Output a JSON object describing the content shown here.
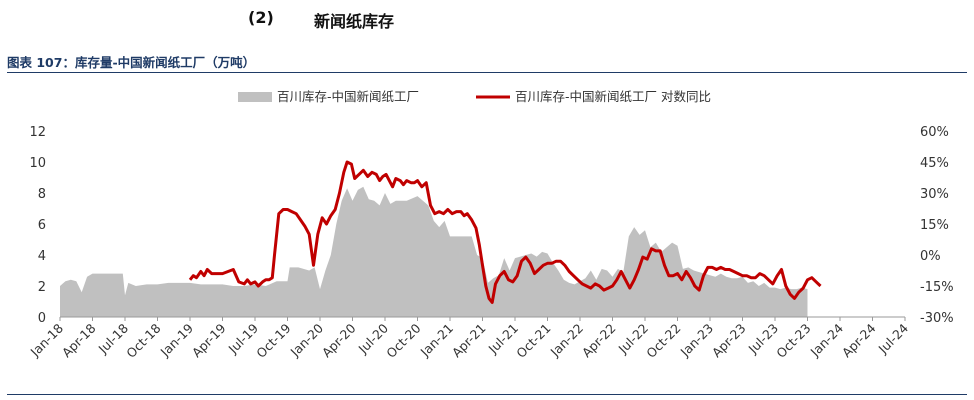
{
  "section": {
    "number": "(2)",
    "title": "新闻纸库存"
  },
  "caption": "图表 107：库存量-中国新闻纸工厂（万吨）",
  "chart_data": {
    "type": "area",
    "legend_position": "top-center",
    "grid": false,
    "x_tick_labels": [
      "Jan-18",
      "Apr-18",
      "Jul-18",
      "Oct-18",
      "Jan-19",
      "Apr-19",
      "Jul-19",
      "Oct-19",
      "Jan-20",
      "Apr-20",
      "Jul-20",
      "Oct-20",
      "Jan-21",
      "Apr-21",
      "Jul-21",
      "Oct-21",
      "Jan-22",
      "Apr-22",
      "Jul-22",
      "Oct-22",
      "Jan-23",
      "Apr-23",
      "Jul-23",
      "Oct-23",
      "Jan-24",
      "Apr-24",
      "Jul-24"
    ],
    "x_range": [
      0,
      78
    ],
    "y_left": {
      "range": [
        0,
        12
      ],
      "ticks": [
        "0",
        "2",
        "4",
        "6",
        "8",
        "10",
        "12"
      ]
    },
    "y_right": {
      "range": [
        -30,
        60
      ],
      "ticks": [
        "-30%",
        "-15%",
        "0%",
        "15%",
        "30%",
        "45%",
        "60%"
      ]
    },
    "colors": {
      "inventory": "#c0c0c0",
      "yoy": "#c00000"
    },
    "series": [
      {
        "name": "百川库存-中国新闻纸工厂",
        "kind": "area",
        "axis": "left",
        "points": [
          [
            0,
            2.0
          ],
          [
            0.5,
            2.3
          ],
          [
            1,
            2.4
          ],
          [
            1.5,
            2.3
          ],
          [
            2,
            1.6
          ],
          [
            2.5,
            2.6
          ],
          [
            3,
            2.8
          ],
          [
            4,
            2.8
          ],
          [
            5,
            2.8
          ],
          [
            5.8,
            2.8
          ],
          [
            6,
            1.4
          ],
          [
            6.3,
            2.2
          ],
          [
            7,
            2.0
          ],
          [
            8,
            2.1
          ],
          [
            9,
            2.1
          ],
          [
            10,
            2.2
          ],
          [
            11,
            2.2
          ],
          [
            12,
            2.2
          ],
          [
            13,
            2.1
          ],
          [
            14,
            2.1
          ],
          [
            15,
            2.1
          ],
          [
            16,
            2.0
          ],
          [
            17,
            2.0
          ],
          [
            18,
            2.1
          ],
          [
            19,
            2.0
          ],
          [
            20,
            2.3
          ],
          [
            21,
            2.3
          ],
          [
            21.2,
            3.2
          ],
          [
            22,
            3.2
          ],
          [
            23,
            3.0
          ],
          [
            23.5,
            3.2
          ],
          [
            24,
            1.8
          ],
          [
            24.5,
            3.0
          ],
          [
            25,
            4.0
          ],
          [
            25.5,
            6.0
          ],
          [
            26,
            7.5
          ],
          [
            26.5,
            8.3
          ],
          [
            27,
            7.5
          ],
          [
            27.5,
            8.2
          ],
          [
            28,
            8.4
          ],
          [
            28.5,
            7.6
          ],
          [
            29,
            7.5
          ],
          [
            29.5,
            7.2
          ],
          [
            30,
            8.0
          ],
          [
            30.5,
            7.3
          ],
          [
            31,
            7.5
          ],
          [
            32,
            7.5
          ],
          [
            33,
            7.8
          ],
          [
            34,
            7.2
          ],
          [
            34.5,
            6.2
          ],
          [
            35,
            5.8
          ],
          [
            35.5,
            6.2
          ],
          [
            36,
            5.2
          ],
          [
            37,
            5.2
          ],
          [
            38,
            5.2
          ],
          [
            38.5,
            4.0
          ],
          [
            39,
            3.8
          ],
          [
            39.5,
            2.2
          ],
          [
            40,
            2.5
          ],
          [
            40.5,
            2.7
          ],
          [
            41,
            3.8
          ],
          [
            41.5,
            3.0
          ],
          [
            42,
            3.8
          ],
          [
            42.5,
            3.9
          ],
          [
            43,
            4.0
          ],
          [
            43.5,
            4.1
          ],
          [
            44,
            3.9
          ],
          [
            44.5,
            4.2
          ],
          [
            45,
            4.1
          ],
          [
            45.5,
            3.5
          ],
          [
            46,
            3.0
          ],
          [
            46.5,
            2.4
          ],
          [
            47,
            2.2
          ],
          [
            47.5,
            2.1
          ],
          [
            48,
            2.3
          ],
          [
            48.5,
            2.5
          ],
          [
            49,
            3.0
          ],
          [
            49.5,
            2.4
          ],
          [
            50,
            3.1
          ],
          [
            50.5,
            3.0
          ],
          [
            51,
            2.6
          ],
          [
            51.5,
            3.1
          ],
          [
            52,
            2.9
          ],
          [
            52.5,
            5.2
          ],
          [
            53,
            5.8
          ],
          [
            53.5,
            5.3
          ],
          [
            54,
            5.6
          ],
          [
            54.5,
            4.5
          ],
          [
            55,
            4.8
          ],
          [
            55.5,
            4.2
          ],
          [
            56,
            4.5
          ],
          [
            56.5,
            4.8
          ],
          [
            57,
            4.6
          ],
          [
            57.5,
            3.1
          ],
          [
            58,
            3.2
          ],
          [
            58.5,
            3.0
          ],
          [
            59,
            2.9
          ],
          [
            59.5,
            2.8
          ],
          [
            60,
            2.7
          ],
          [
            60.5,
            2.6
          ],
          [
            61,
            2.8
          ],
          [
            61.5,
            2.6
          ],
          [
            62,
            2.5
          ],
          [
            62.5,
            2.5
          ],
          [
            63,
            2.6
          ],
          [
            63.5,
            2.2
          ],
          [
            64,
            2.3
          ],
          [
            64.5,
            2.0
          ],
          [
            65,
            2.2
          ],
          [
            65.5,
            1.9
          ],
          [
            66,
            1.9
          ],
          [
            66.5,
            1.8
          ],
          [
            67,
            1.9
          ],
          [
            67.5,
            1.8
          ],
          [
            68,
            1.8
          ],
          [
            68.5,
            1.9
          ],
          [
            69,
            1.8
          ]
        ]
      },
      {
        "name": "百川库存-中国新闻纸工厂 对数同比",
        "kind": "line",
        "axis": "right",
        "points": [
          [
            12,
            -12
          ],
          [
            12.3,
            -10
          ],
          [
            12.6,
            -11
          ],
          [
            13,
            -8
          ],
          [
            13.3,
            -10
          ],
          [
            13.6,
            -7
          ],
          [
            14,
            -9
          ],
          [
            15,
            -9
          ],
          [
            16,
            -7
          ],
          [
            16.5,
            -13
          ],
          [
            17,
            -14
          ],
          [
            17.3,
            -12
          ],
          [
            17.6,
            -14
          ],
          [
            18,
            -13
          ],
          [
            18.3,
            -15
          ],
          [
            18.7,
            -13
          ],
          [
            19,
            -12
          ],
          [
            19.3,
            -12
          ],
          [
            19.6,
            -11
          ],
          [
            19.8,
            0
          ],
          [
            20.2,
            20
          ],
          [
            20.6,
            22
          ],
          [
            21,
            22
          ],
          [
            21.4,
            21
          ],
          [
            21.8,
            20
          ],
          [
            22.2,
            17
          ],
          [
            22.6,
            14
          ],
          [
            23,
            10
          ],
          [
            23.4,
            -5
          ],
          [
            23.8,
            10
          ],
          [
            24.2,
            18
          ],
          [
            24.6,
            15
          ],
          [
            25,
            19
          ],
          [
            25.4,
            22
          ],
          [
            25.8,
            30
          ],
          [
            26.2,
            40
          ],
          [
            26.5,
            45
          ],
          [
            26.9,
            44
          ],
          [
            27.2,
            37
          ],
          [
            27.6,
            39
          ],
          [
            28,
            41
          ],
          [
            28.4,
            38
          ],
          [
            28.8,
            40
          ],
          [
            29.2,
            39
          ],
          [
            29.5,
            36
          ],
          [
            29.8,
            38
          ],
          [
            30.1,
            39
          ],
          [
            30.4,
            36
          ],
          [
            30.7,
            33
          ],
          [
            31,
            37
          ],
          [
            31.4,
            36
          ],
          [
            31.7,
            34
          ],
          [
            32,
            36
          ],
          [
            32.4,
            35
          ],
          [
            32.7,
            35
          ],
          [
            33,
            36
          ],
          [
            33.4,
            33
          ],
          [
            33.8,
            35
          ],
          [
            34.2,
            24
          ],
          [
            34.6,
            20
          ],
          [
            35,
            21
          ],
          [
            35.4,
            20
          ],
          [
            35.8,
            22
          ],
          [
            36.2,
            20
          ],
          [
            36.6,
            21
          ],
          [
            37,
            21
          ],
          [
            37.3,
            19
          ],
          [
            37.6,
            20
          ],
          [
            38,
            17
          ],
          [
            38.4,
            13
          ],
          [
            38.7,
            5
          ],
          [
            39,
            -5
          ],
          [
            39.3,
            -15
          ],
          [
            39.6,
            -21
          ],
          [
            39.9,
            -23
          ],
          [
            40.2,
            -14
          ],
          [
            40.6,
            -10
          ],
          [
            41,
            -8
          ],
          [
            41.4,
            -12
          ],
          [
            41.8,
            -13
          ],
          [
            42.2,
            -10
          ],
          [
            42.6,
            -3
          ],
          [
            43,
            -1
          ],
          [
            43.4,
            -4
          ],
          [
            43.8,
            -9
          ],
          [
            44.2,
            -7
          ],
          [
            44.6,
            -5
          ],
          [
            45,
            -4
          ],
          [
            45.4,
            -4
          ],
          [
            45.8,
            -3
          ],
          [
            46.2,
            -3
          ],
          [
            46.6,
            -5
          ],
          [
            47,
            -8
          ],
          [
            47.4,
            -10
          ],
          [
            47.8,
            -12
          ],
          [
            48.2,
            -14
          ],
          [
            48.6,
            -15
          ],
          [
            49,
            -16
          ],
          [
            49.4,
            -14
          ],
          [
            49.8,
            -15
          ],
          [
            50.2,
            -17
          ],
          [
            50.6,
            -16
          ],
          [
            51,
            -15
          ],
          [
            51.4,
            -12
          ],
          [
            51.8,
            -8
          ],
          [
            52.2,
            -12
          ],
          [
            52.6,
            -16
          ],
          [
            53,
            -12
          ],
          [
            53.4,
            -7
          ],
          [
            53.8,
            -1
          ],
          [
            54.2,
            -2
          ],
          [
            54.6,
            3
          ],
          [
            55,
            2
          ],
          [
            55.4,
            2
          ],
          [
            55.8,
            -5
          ],
          [
            56.2,
            -10
          ],
          [
            56.6,
            -10
          ],
          [
            57,
            -9
          ],
          [
            57.4,
            -12
          ],
          [
            57.8,
            -8
          ],
          [
            58.2,
            -11
          ],
          [
            58.6,
            -15
          ],
          [
            59,
            -17
          ],
          [
            59.4,
            -10
          ],
          [
            59.8,
            -6
          ],
          [
            60.2,
            -6
          ],
          [
            60.6,
            -7
          ],
          [
            61,
            -6
          ],
          [
            61.4,
            -7
          ],
          [
            61.8,
            -7
          ],
          [
            62.2,
            -8
          ],
          [
            62.6,
            -9
          ],
          [
            63,
            -10
          ],
          [
            63.4,
            -10
          ],
          [
            63.8,
            -11
          ],
          [
            64.2,
            -11
          ],
          [
            64.6,
            -9
          ],
          [
            65,
            -10
          ],
          [
            65.4,
            -12
          ],
          [
            65.8,
            -14
          ],
          [
            66.2,
            -10
          ],
          [
            66.6,
            -7
          ],
          [
            67,
            -15
          ],
          [
            67.4,
            -19
          ],
          [
            67.8,
            -21
          ],
          [
            68.2,
            -18
          ],
          [
            68.6,
            -16
          ],
          [
            69,
            -12
          ],
          [
            69.4,
            -11
          ],
          [
            69.8,
            -13
          ],
          [
            70.2,
            -15
          ]
        ]
      }
    ]
  }
}
